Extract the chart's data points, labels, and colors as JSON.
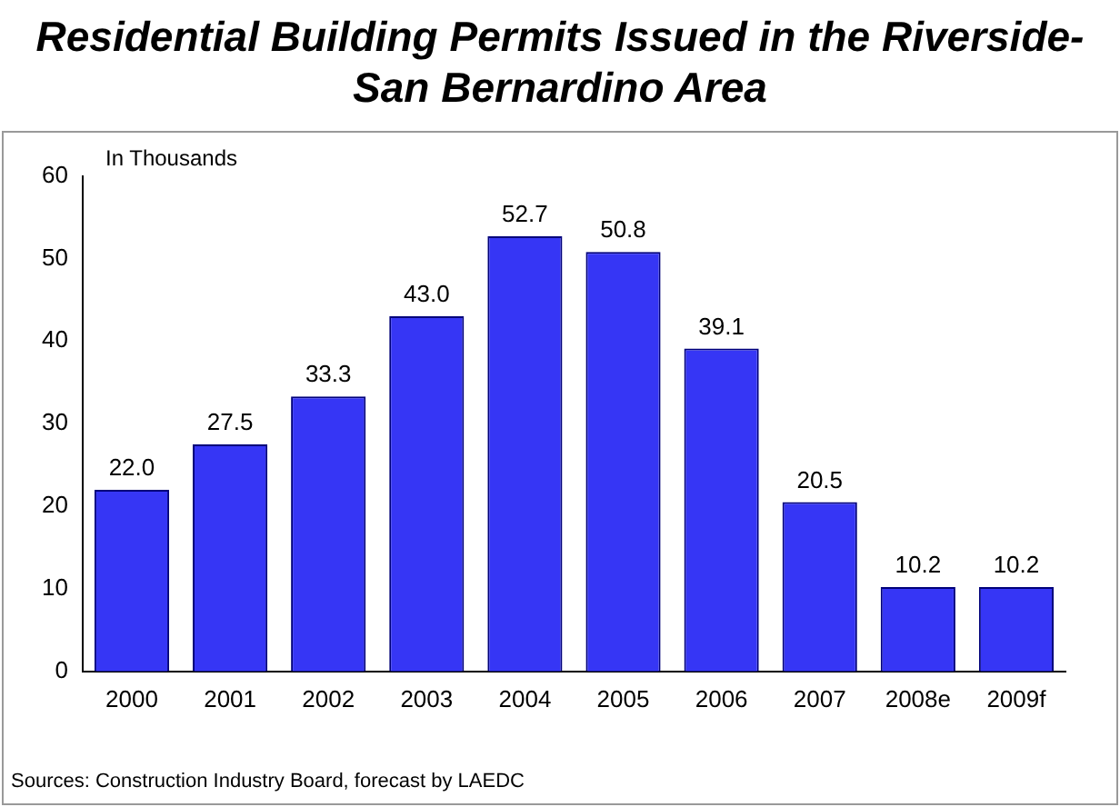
{
  "chart_data": {
    "type": "bar",
    "title": "Residential Building Permits Issued in the Riverside-San Bernardino Area",
    "ylabel": "In Thousands",
    "categories": [
      "2000",
      "2001",
      "2002",
      "2003",
      "2004",
      "2005",
      "2006",
      "2007",
      "2008e",
      "2009f"
    ],
    "values": [
      22.0,
      27.5,
      33.3,
      43.0,
      52.7,
      50.8,
      39.1,
      20.5,
      10.2,
      10.2
    ],
    "value_labels": [
      "22.0",
      "27.5",
      "33.3",
      "43.0",
      "52.7",
      "50.8",
      "39.1",
      "20.5",
      "10.2",
      "10.2"
    ],
    "color": "#3636f5",
    "ylim": [
      0,
      60
    ],
    "yticks": [
      0,
      10,
      20,
      30,
      40,
      50,
      60
    ],
    "grid": false,
    "legend": false,
    "annotations": [
      "Sources: Construction Industry Board, forecast by LAEDC"
    ]
  }
}
